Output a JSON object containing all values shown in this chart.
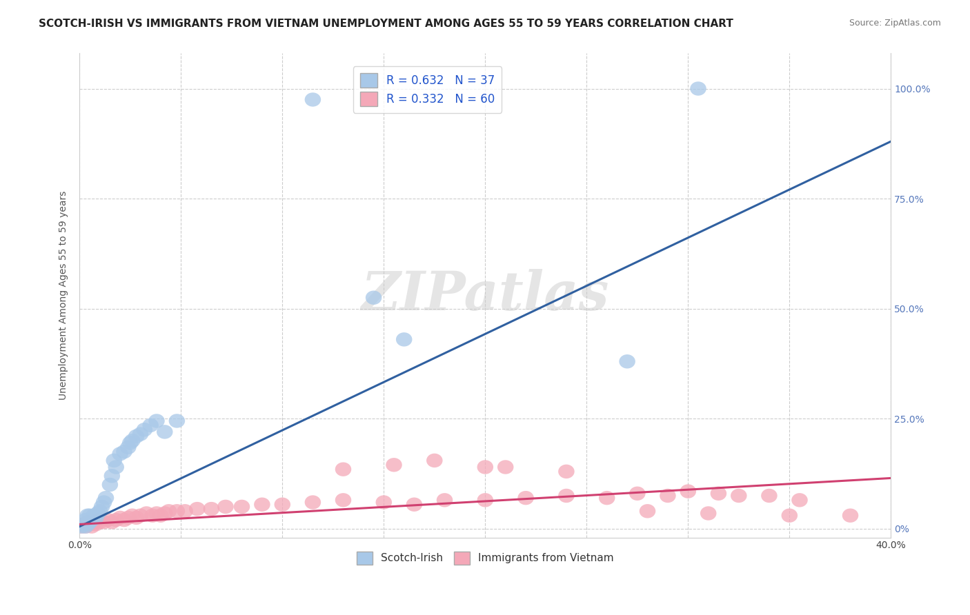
{
  "title": "SCOTCH-IRISH VS IMMIGRANTS FROM VIETNAM UNEMPLOYMENT AMONG AGES 55 TO 59 YEARS CORRELATION CHART",
  "source": "Source: ZipAtlas.com",
  "ylabel": "Unemployment Among Ages 55 to 59 years",
  "xlim": [
    0.0,
    0.4
  ],
  "ylim": [
    -0.02,
    1.08
  ],
  "blue_label": "Scotch-Irish",
  "pink_label": "Immigrants from Vietnam",
  "blue_R": "R = 0.632",
  "blue_N": "N = 37",
  "pink_R": "R = 0.332",
  "pink_N": "N = 60",
  "blue_color": "#A8C8E8",
  "pink_color": "#F4A8B8",
  "blue_line_color": "#3060A0",
  "pink_line_color": "#D04070",
  "watermark": "ZIPatlas",
  "blue_points_x": [
    0.001,
    0.002,
    0.003,
    0.003,
    0.004,
    0.004,
    0.005,
    0.005,
    0.006,
    0.007,
    0.008,
    0.009,
    0.01,
    0.011,
    0.012,
    0.013,
    0.015,
    0.016,
    0.017,
    0.018,
    0.02,
    0.022,
    0.024,
    0.025,
    0.026,
    0.028,
    0.03,
    0.032,
    0.035,
    0.038,
    0.042,
    0.048,
    0.115,
    0.145,
    0.16,
    0.27,
    0.305
  ],
  "blue_points_y": [
    0.005,
    0.01,
    0.005,
    0.02,
    0.01,
    0.03,
    0.015,
    0.03,
    0.02,
    0.03,
    0.025,
    0.035,
    0.04,
    0.05,
    0.06,
    0.07,
    0.1,
    0.12,
    0.155,
    0.14,
    0.17,
    0.175,
    0.185,
    0.195,
    0.2,
    0.21,
    0.215,
    0.225,
    0.235,
    0.245,
    0.22,
    0.245,
    0.975,
    0.525,
    0.43,
    0.38,
    1.0
  ],
  "pink_points_x": [
    0.001,
    0.002,
    0.003,
    0.004,
    0.005,
    0.006,
    0.007,
    0.008,
    0.009,
    0.01,
    0.012,
    0.014,
    0.016,
    0.018,
    0.02,
    0.022,
    0.024,
    0.026,
    0.028,
    0.03,
    0.033,
    0.036,
    0.038,
    0.04,
    0.042,
    0.044,
    0.048,
    0.052,
    0.058,
    0.065,
    0.072,
    0.08,
    0.09,
    0.1,
    0.115,
    0.13,
    0.15,
    0.165,
    0.18,
    0.2,
    0.22,
    0.24,
    0.26,
    0.275,
    0.29,
    0.3,
    0.315,
    0.325,
    0.34,
    0.355,
    0.13,
    0.155,
    0.175,
    0.2,
    0.28,
    0.31,
    0.35,
    0.38,
    0.21,
    0.24
  ],
  "pink_points_y": [
    0.005,
    0.01,
    0.005,
    0.015,
    0.01,
    0.005,
    0.015,
    0.01,
    0.02,
    0.015,
    0.015,
    0.02,
    0.015,
    0.02,
    0.025,
    0.02,
    0.025,
    0.03,
    0.025,
    0.03,
    0.035,
    0.03,
    0.035,
    0.03,
    0.035,
    0.04,
    0.04,
    0.04,
    0.045,
    0.045,
    0.05,
    0.05,
    0.055,
    0.055,
    0.06,
    0.065,
    0.06,
    0.055,
    0.065,
    0.065,
    0.07,
    0.075,
    0.07,
    0.08,
    0.075,
    0.085,
    0.08,
    0.075,
    0.075,
    0.065,
    0.135,
    0.145,
    0.155,
    0.14,
    0.04,
    0.035,
    0.03,
    0.03,
    0.14,
    0.13
  ],
  "blue_trend_x": [
    0.0,
    0.4
  ],
  "blue_trend_y": [
    0.005,
    0.88
  ],
  "pink_trend_x": [
    0.0,
    0.4
  ],
  "pink_trend_y": [
    0.01,
    0.115
  ],
  "title_fontsize": 11,
  "source_fontsize": 9,
  "legend_fontsize": 12,
  "axis_label_fontsize": 10,
  "yticks": [
    0.0,
    0.25,
    0.5,
    0.75,
    1.0
  ],
  "ytick_labels": [
    "0%",
    "25.0%",
    "50.0%",
    "75.0%",
    "100.0%"
  ],
  "xticks": [
    0.0,
    0.05,
    0.1,
    0.15,
    0.2,
    0.25,
    0.3,
    0.35,
    0.4
  ],
  "grid_color": "#cccccc",
  "bg_color": "#ffffff"
}
